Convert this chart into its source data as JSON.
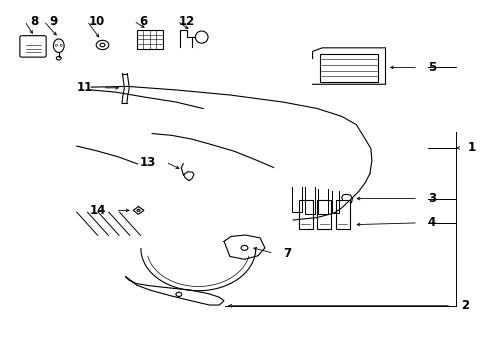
{
  "background_color": "#ffffff",
  "line_color": "#000000",
  "label_color": "#000000",
  "fig_width": 4.89,
  "fig_height": 3.6,
  "dpi": 100,
  "lw": 0.8
}
